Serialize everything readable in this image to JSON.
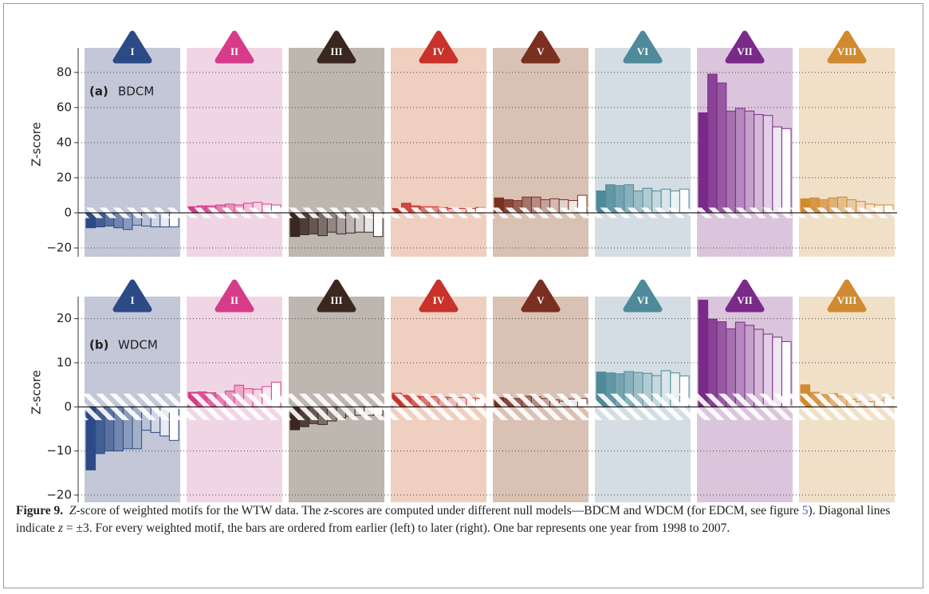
{
  "chart_data": [
    {
      "type": "bar",
      "panel_label": "(a)",
      "model": "BDCM",
      "ylabel": "Z-score",
      "categories": [
        "I",
        "II",
        "III",
        "IV",
        "V",
        "VI",
        "VII",
        "VIII"
      ],
      "colors": [
        "#2c4a85",
        "#d63c8a",
        "#3a2720",
        "#c8322a",
        "#7a3020",
        "#4e8a9a",
        "#7a2a88",
        "#d08a30"
      ],
      "background_colors": [
        "#c3c7d8",
        "#f0d6e4",
        "#bdb7b0",
        "#efcfbf",
        "#d9c2b4",
        "#d3dde3",
        "#dbc5dc",
        "#f1e0c8"
      ],
      "values": [
        [
          -8.5,
          -8,
          -7.5,
          -8.5,
          -9.5,
          -7,
          -7.5,
          -8,
          -8,
          -8
        ],
        [
          3.5,
          4,
          4,
          4.5,
          5,
          4.5,
          5.5,
          6,
          5,
          4.5
        ],
        [
          -13.5,
          -12.5,
          -12,
          -13,
          -11,
          -12,
          -11.5,
          -11,
          -11,
          -13.5
        ],
        [
          2.5,
          5.5,
          4,
          3.5,
          3.5,
          3,
          2.5,
          2.5,
          2.5,
          3
        ],
        [
          8.5,
          7.5,
          7,
          9,
          9,
          7.5,
          8,
          7.5,
          7,
          10
        ],
        [
          12.5,
          16,
          15.5,
          16,
          12.5,
          14,
          12.5,
          13.5,
          12.5,
          13.5
        ],
        [
          57,
          79,
          74,
          58,
          59.5,
          58,
          56,
          55.5,
          49,
          48
        ],
        [
          8,
          8.5,
          7.5,
          8.5,
          9,
          7.5,
          6.5,
          5,
          4.5,
          4.5
        ]
      ],
      "threshold": 3,
      "ylim": [
        -25,
        94
      ],
      "yticks": [
        {
          "value": -20,
          "label": "−20"
        },
        0,
        20,
        40,
        60,
        80
      ],
      "grid": true
    },
    {
      "type": "bar",
      "panel_label": "(b)",
      "model": "WDCM",
      "ylabel": "Z-score",
      "categories": [
        "I",
        "II",
        "III",
        "IV",
        "V",
        "VI",
        "VII",
        "VIII"
      ],
      "colors": [
        "#2c4a85",
        "#d63c8a",
        "#3a2720",
        "#c8322a",
        "#7a3020",
        "#4e8a9a",
        "#7a2a88",
        "#d08a30"
      ],
      "background_colors": [
        "#c3c7d8",
        "#f0d6e4",
        "#bdb7b0",
        "#efcfbf",
        "#d9c2b4",
        "#d3dde3",
        "#dbc5dc",
        "#f1e0c8"
      ],
      "values": [
        [
          -14.3,
          -10.6,
          -10,
          -10,
          -9.5,
          -9.5,
          -5.3,
          -5.8,
          -6.6,
          -7.6
        ],
        [
          3.3,
          3.4,
          3.2,
          2.7,
          3.6,
          4.9,
          4.1,
          4.0,
          4.6,
          5.6
        ],
        [
          -5.2,
          -4.5,
          -3.8,
          -4,
          -3.2,
          -2.5,
          -2.1,
          -1.9,
          -1.9,
          -1.9
        ],
        [
          3.1,
          2.6,
          2.4,
          2.3,
          2.3,
          2.2,
          2.1,
          2.1,
          2.0,
          1.9
        ],
        [
          2.1,
          1.9,
          1.9,
          2.4,
          2.3,
          1.9,
          1.6,
          1.3,
          1.8,
          1.9
        ],
        [
          7.9,
          7.7,
          7.5,
          8.0,
          7.8,
          7.6,
          7.1,
          8.2,
          7.7,
          7.0
        ],
        [
          24.2,
          19.9,
          19.3,
          17.7,
          19.2,
          18.5,
          17.6,
          16.5,
          15.8,
          14.8
        ],
        [
          5.0,
          3.3,
          2.8,
          3.0,
          2.4,
          1.8,
          1.2,
          1.2,
          1.5,
          2.1
        ]
      ],
      "threshold": 3,
      "ylim": [
        -22,
        25
      ],
      "yticks": [
        {
          "value": -20,
          "label": "−20"
        },
        {
          "value": -10,
          "label": "−10"
        },
        0,
        10,
        20
      ],
      "grid": true
    }
  ],
  "caption": {
    "label": "Figure 9.",
    "segments": [
      "Z",
      "-score of weighted motifs for the WTW data. The ",
      "z",
      "-scores are computed under different null models—BDCM and WDCM (for EDCM, see figure ",
      "5",
      "). Diagonal lines indicate ",
      "z",
      " = ±3. For every weighted motif, the bars are ordered from earlier (left) to later (right). One bar represents one year from 1998 to 2007."
    ]
  }
}
